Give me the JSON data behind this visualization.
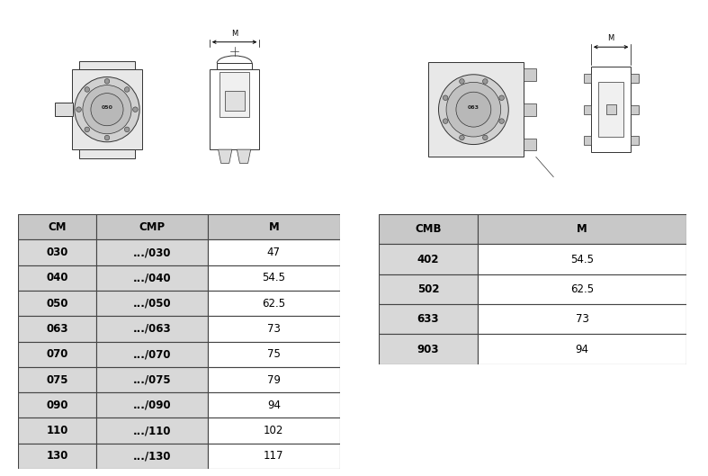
{
  "table1_headers": [
    "CM",
    "CMP",
    "M"
  ],
  "table1_rows": [
    [
      "030",
      ".../030",
      "47"
    ],
    [
      "040",
      ".../040",
      "54.5"
    ],
    [
      "050",
      ".../050",
      "62.5"
    ],
    [
      "063",
      ".../063",
      "73"
    ],
    [
      "070",
      ".../070",
      "75"
    ],
    [
      "075",
      ".../075",
      "79"
    ],
    [
      "090",
      ".../090",
      "94"
    ],
    [
      "110",
      ".../110",
      "102"
    ],
    [
      "130",
      ".../130",
      "117"
    ]
  ],
  "table2_headers": [
    "CMB",
    "M"
  ],
  "table2_rows": [
    [
      "402",
      "54.5"
    ],
    [
      "502",
      "62.5"
    ],
    [
      "633",
      "73"
    ],
    [
      "903",
      "94"
    ]
  ],
  "header_bg": "#c8c8c8",
  "col1_bg": "#d8d8d8",
  "white_bg": "#ffffff",
  "border_color": "#444444",
  "text_color": "#000000",
  "font_size": 8.5,
  "header_font_size": 8.5,
  "bg_color": "#ffffff",
  "draw_color": "#333333",
  "light_gray": "#e8e8e8",
  "mid_gray": "#bbbbbb"
}
